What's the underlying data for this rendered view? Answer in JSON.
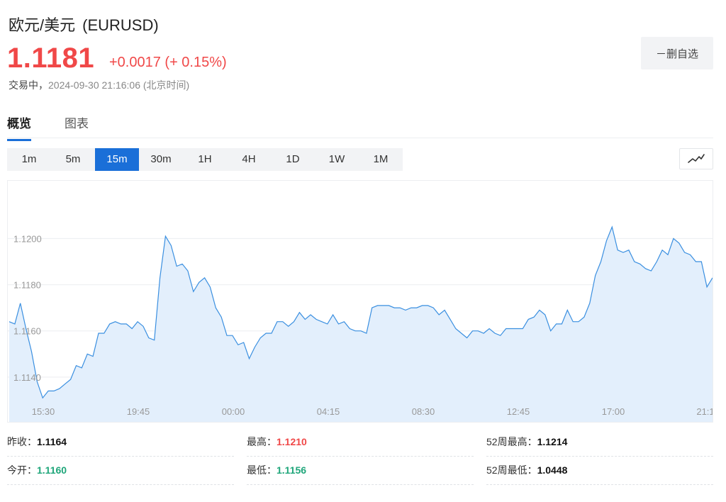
{
  "header": {
    "pair_name": "欧元/美元",
    "symbol": "(EURUSD)",
    "price": "1.1181",
    "change": "+0.0017 (+ 0.15%)",
    "status": "交易中，",
    "timestamp": "2024-09-30 21:16:06 (北京时间)",
    "watch_button": "－删自选"
  },
  "tabs": [
    {
      "label": "概览",
      "active": true
    },
    {
      "label": "图表",
      "active": false
    }
  ],
  "periods": [
    {
      "label": "1m",
      "active": false
    },
    {
      "label": "5m",
      "active": false
    },
    {
      "label": "15m",
      "active": true
    },
    {
      "label": "30m",
      "active": false
    },
    {
      "label": "1H",
      "active": false
    },
    {
      "label": "4H",
      "active": false
    },
    {
      "label": "1D",
      "active": false
    },
    {
      "label": "1W",
      "active": false
    },
    {
      "label": "1M",
      "active": false
    }
  ],
  "chart_type_icon": "line-chart-icon",
  "colors": {
    "up": "#f04848",
    "down": "#1fa67a",
    "accent": "#1a6fd8",
    "line": "#3a8fe0",
    "fill": "#e3effc"
  },
  "chart_data": {
    "type": "area",
    "yticks": [
      "1.1140",
      "1.1160",
      "1.1180",
      "1.1200"
    ],
    "xticks": [
      "15:30",
      "19:45",
      "00:00",
      "04:15",
      "08:30",
      "12:45",
      "17:00",
      "21:1"
    ],
    "ylim": [
      1.112,
      1.1225
    ],
    "grid": true,
    "series": [
      {
        "values": [
          1.1164,
          1.1163,
          1.1172,
          1.1161,
          1.1151,
          1.1138,
          1.1131,
          1.1134,
          1.1134,
          1.1135,
          1.1137,
          1.1139,
          1.1145,
          1.1144,
          1.115,
          1.1149,
          1.1159,
          1.1159,
          1.1163,
          1.1164,
          1.1163,
          1.1163,
          1.1161,
          1.1164,
          1.1162,
          1.1157,
          1.1156,
          1.1183,
          1.1201,
          1.1197,
          1.1188,
          1.1189,
          1.1186,
          1.1177,
          1.1181,
          1.1183,
          1.1179,
          1.117,
          1.1166,
          1.1158,
          1.1158,
          1.1154,
          1.1155,
          1.1148,
          1.1153,
          1.1157,
          1.1159,
          1.1159,
          1.1164,
          1.1164,
          1.1162,
          1.1164,
          1.1168,
          1.1165,
          1.1167,
          1.1165,
          1.1164,
          1.1163,
          1.1167,
          1.1163,
          1.1164,
          1.1161,
          1.116,
          1.116,
          1.1159,
          1.117,
          1.1171,
          1.1171,
          1.1171,
          1.117,
          1.117,
          1.1169,
          1.117,
          1.117,
          1.1171,
          1.1171,
          1.117,
          1.1167,
          1.1169,
          1.1165,
          1.1161,
          1.1159,
          1.1157,
          1.116,
          1.116,
          1.1159,
          1.1161,
          1.1159,
          1.1158,
          1.1161,
          1.1161,
          1.1161,
          1.1161,
          1.1165,
          1.1166,
          1.1169,
          1.1167,
          1.116,
          1.1163,
          1.1163,
          1.1169,
          1.1164,
          1.1164,
          1.1166,
          1.1172,
          1.1184,
          1.119,
          1.1199,
          1.1205,
          1.1195,
          1.1194,
          1.1195,
          1.119,
          1.1189,
          1.1187,
          1.1186,
          1.119,
          1.1195,
          1.1193,
          1.12,
          1.1198,
          1.1194,
          1.1193,
          1.119,
          1.119,
          1.1179,
          1.1183
        ]
      }
    ]
  },
  "stats": [
    {
      "label": "昨收：",
      "value": "1.1164",
      "tone": "black"
    },
    {
      "label": "最高：",
      "value": "1.1210",
      "tone": "red"
    },
    {
      "label": "52周最高：",
      "value": "1.1214",
      "tone": "black"
    },
    {
      "label": "今开：",
      "value": "1.1160",
      "tone": "green"
    },
    {
      "label": "最低：",
      "value": "1.1156",
      "tone": "green"
    },
    {
      "label": "52周最低：",
      "value": "1.0448",
      "tone": "black"
    }
  ]
}
